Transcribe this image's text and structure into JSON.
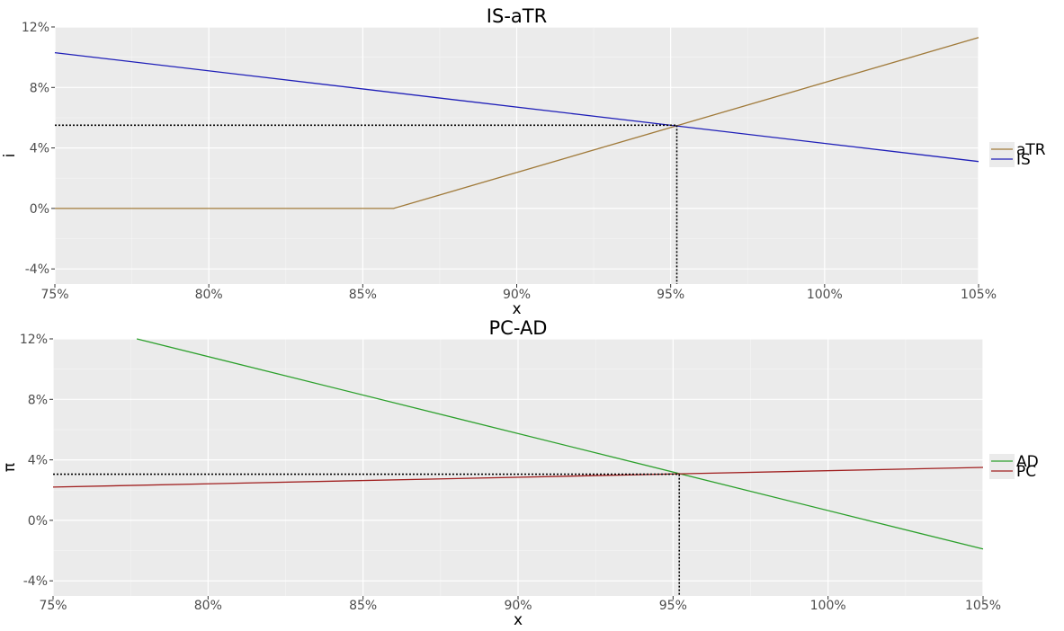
{
  "chart_data": [
    {
      "type": "line",
      "title": "IS-aTR",
      "xlabel": "x",
      "ylabel": "i",
      "xlim": [
        75,
        105
      ],
      "ylim": [
        -5,
        12
      ],
      "x_ticks": [
        75,
        80,
        85,
        90,
        95,
        100,
        105
      ],
      "x_tick_labels": [
        "75%",
        "80%",
        "85%",
        "90%",
        "95%",
        "100%",
        "105%"
      ],
      "y_ticks": [
        -4,
        0,
        4,
        8,
        12
      ],
      "y_tick_labels": [
        "-4%",
        "0%",
        "4%",
        "8%",
        "12%"
      ],
      "grid": true,
      "legend_position": "right",
      "series": [
        {
          "name": "aTR",
          "color": "#a07a3a",
          "x": [
            75,
            86,
            105
          ],
          "y": [
            0,
            0,
            11.3
          ]
        },
        {
          "name": "IS",
          "color": "#1f1fb8",
          "x": [
            75,
            105
          ],
          "y": [
            10.3,
            3.1
          ]
        }
      ],
      "equilibrium": {
        "x": 95.2,
        "y": 5.5,
        "color": "#000000"
      }
    },
    {
      "type": "line",
      "title": "PC-AD",
      "xlabel": "x",
      "ylabel": "π",
      "xlim": [
        75,
        105
      ],
      "ylim": [
        -5,
        12
      ],
      "x_ticks": [
        75,
        80,
        85,
        90,
        95,
        100,
        105
      ],
      "x_tick_labels": [
        "75%",
        "80%",
        "85%",
        "90%",
        "95%",
        "100%",
        "105%"
      ],
      "y_ticks": [
        -4,
        0,
        4,
        8,
        12
      ],
      "y_tick_labels": [
        "-4%",
        "0%",
        "4%",
        "8%",
        "12%"
      ],
      "grid": true,
      "legend_position": "right",
      "series": [
        {
          "name": "AD",
          "color": "#2ca02c",
          "x": [
            77.7,
            105
          ],
          "y": [
            12,
            -1.9
          ]
        },
        {
          "name": "PC",
          "color": "#a01f1f",
          "x": [
            75,
            105
          ],
          "y": [
            2.2,
            3.5
          ]
        }
      ],
      "equilibrium": {
        "x": 95.2,
        "y": 3.05,
        "color": "#000000"
      }
    }
  ]
}
